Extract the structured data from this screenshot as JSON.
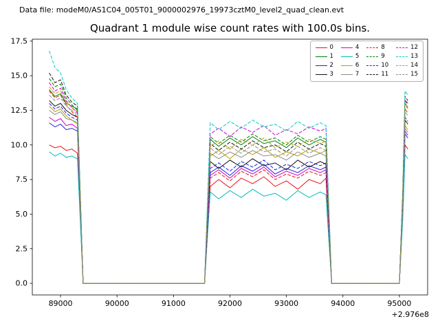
{
  "header": {
    "text": "Data file: modeM0/AS1C04_005T01_9000002976_19973cztM0_level2_quad_clean.evt"
  },
  "chart_data": {
    "type": "line",
    "title": "Quadrant 1 module wise count rates with 100.0s bins.",
    "xlabel": "",
    "ylabel": "",
    "x_offset_label": "+2.976e8",
    "xlim": [
      88500,
      95500
    ],
    "ylim": [
      -0.84,
      17.64
    ],
    "x_ticks": [
      89000,
      90000,
      91000,
      92000,
      93000,
      94000,
      95000
    ],
    "y_ticks": [
      0.0,
      2.5,
      5.0,
      7.5,
      10.0,
      12.5,
      15.0,
      17.5
    ],
    "grid": false,
    "legend_position": "upper right",
    "legend_columns": 4,
    "x": [
      88800,
      88900,
      89000,
      89100,
      89200,
      89300,
      89400,
      89500,
      90000,
      90500,
      91000,
      91450,
      91550,
      91650,
      91800,
      92000,
      92200,
      92400,
      92600,
      92800,
      93000,
      93200,
      93400,
      93600,
      93700,
      93800,
      93900,
      94300,
      94700,
      95000,
      95060,
      95100,
      95150
    ],
    "series": [
      {
        "name": "0",
        "color": "#ee1111",
        "dash": "solid",
        "values": [
          10.0,
          9.8,
          9.9,
          9.6,
          9.7,
          9.4,
          0.0,
          0.0,
          0.0,
          0.0,
          0.0,
          0.0,
          0.0,
          7.0,
          7.5,
          6.9,
          7.6,
          7.2,
          7.7,
          7.0,
          7.4,
          6.8,
          7.5,
          7.2,
          7.6,
          0.0,
          0.0,
          0.0,
          0.0,
          0.0,
          5.0,
          10.0,
          9.7
        ]
      },
      {
        "name": "1",
        "color": "#007f00",
        "dash": "solid",
        "values": [
          14.0,
          13.5,
          13.7,
          13.0,
          12.8,
          12.6,
          0.0,
          0.0,
          0.0,
          0.0,
          0.0,
          0.0,
          0.0,
          10.4,
          9.9,
          10.5,
          10.0,
          10.6,
          10.1,
          10.3,
          9.8,
          10.5,
          10.0,
          10.4,
          10.2,
          0.0,
          0.0,
          0.0,
          0.0,
          0.0,
          6.5,
          13.0,
          12.7
        ]
      },
      {
        "name": "2",
        "color": "#2020dd",
        "dash": "solid",
        "values": [
          11.6,
          11.3,
          11.5,
          11.1,
          11.2,
          11.0,
          0.0,
          0.0,
          0.0,
          0.0,
          0.0,
          0.0,
          0.0,
          8.0,
          8.4,
          7.8,
          8.5,
          8.1,
          8.6,
          7.9,
          8.3,
          8.0,
          8.5,
          8.2,
          8.4,
          0.0,
          0.0,
          0.0,
          0.0,
          0.0,
          5.4,
          10.8,
          10.5
        ]
      },
      {
        "name": "3",
        "color": "#101010",
        "dash": "solid",
        "values": [
          13.2,
          12.8,
          13.0,
          12.5,
          12.2,
          12.0,
          0.0,
          0.0,
          0.0,
          0.0,
          0.0,
          0.0,
          0.0,
          8.8,
          8.3,
          8.9,
          8.4,
          9.0,
          8.5,
          8.7,
          8.2,
          8.9,
          8.4,
          8.8,
          8.6,
          0.0,
          0.0,
          0.0,
          0.0,
          0.0,
          5.9,
          11.8,
          11.5
        ]
      },
      {
        "name": "4",
        "color": "#cc00cc",
        "dash": "solid",
        "values": [
          12.0,
          11.7,
          11.9,
          11.4,
          11.5,
          11.2,
          0.0,
          0.0,
          0.0,
          0.0,
          0.0,
          0.0,
          0.0,
          7.8,
          8.2,
          7.6,
          8.3,
          7.9,
          8.4,
          7.7,
          8.1,
          7.8,
          8.3,
          8.0,
          8.2,
          0.0,
          0.0,
          0.0,
          0.0,
          0.0,
          5.5,
          11.0,
          10.7
        ]
      },
      {
        "name": "5",
        "color": "#00b8b8",
        "dash": "solid",
        "values": [
          9.5,
          9.2,
          9.4,
          9.1,
          9.2,
          9.0,
          0.0,
          0.0,
          0.0,
          0.0,
          0.0,
          0.0,
          0.0,
          6.6,
          6.1,
          6.7,
          6.2,
          6.8,
          6.3,
          6.5,
          6.0,
          6.7,
          6.2,
          6.6,
          6.4,
          0.0,
          0.0,
          0.0,
          0.0,
          0.0,
          4.7,
          9.3,
          9.0
        ]
      },
      {
        "name": "6",
        "color": "#b8a000",
        "dash": "solid",
        "values": [
          12.8,
          12.4,
          12.6,
          12.1,
          11.8,
          11.5,
          0.0,
          0.0,
          0.0,
          0.0,
          0.0,
          0.0,
          0.0,
          9.2,
          9.6,
          9.0,
          9.7,
          9.3,
          9.8,
          9.1,
          9.5,
          9.2,
          9.7,
          9.4,
          9.6,
          0.0,
          0.0,
          0.0,
          0.0,
          0.0,
          5.7,
          11.4,
          11.1
        ]
      },
      {
        "name": "7",
        "color": "#8c8c8c",
        "dash": "solid",
        "values": [
          12.5,
          12.2,
          12.4,
          11.9,
          11.8,
          11.6,
          0.0,
          0.0,
          0.0,
          0.0,
          0.0,
          0.0,
          0.0,
          9.4,
          9.0,
          9.5,
          9.1,
          9.6,
          9.2,
          9.3,
          8.9,
          9.5,
          9.1,
          9.4,
          9.2,
          0.0,
          0.0,
          0.0,
          0.0,
          0.0,
          5.6,
          11.2,
          10.9
        ]
      },
      {
        "name": "8",
        "color": "#ee1111",
        "dash": "dashed",
        "values": [
          13.9,
          13.4,
          13.6,
          12.9,
          12.4,
          12.0,
          0.0,
          0.0,
          0.0,
          0.0,
          0.0,
          0.0,
          0.0,
          7.6,
          8.0,
          7.4,
          8.1,
          7.7,
          8.2,
          7.5,
          7.9,
          7.6,
          8.1,
          7.8,
          8.0,
          0.0,
          0.0,
          0.0,
          0.0,
          0.0,
          6.3,
          12.6,
          12.3
        ]
      },
      {
        "name": "9",
        "color": "#007f00",
        "dash": "dashed",
        "values": [
          14.8,
          14.2,
          14.4,
          13.4,
          12.9,
          12.5,
          0.0,
          0.0,
          0.0,
          0.0,
          0.0,
          0.0,
          0.0,
          10.6,
          10.1,
          10.7,
          10.2,
          10.8,
          10.3,
          10.5,
          10.0,
          10.7,
          10.2,
          10.6,
          10.4,
          0.0,
          0.0,
          0.0,
          0.0,
          0.0,
          6.7,
          13.3,
          13.0
        ]
      },
      {
        "name": "10",
        "color": "#2020dd",
        "dash": "dashed",
        "values": [
          13.0,
          12.6,
          12.8,
          12.3,
          12.0,
          11.8,
          0.0,
          0.0,
          0.0,
          0.0,
          0.0,
          0.0,
          0.0,
          8.3,
          8.7,
          8.1,
          8.8,
          8.4,
          8.9,
          8.2,
          8.6,
          8.3,
          8.8,
          8.5,
          8.7,
          0.0,
          0.0,
          0.0,
          0.0,
          0.0,
          6.0,
          12.0,
          11.7
        ]
      },
      {
        "name": "11",
        "color": "#101010",
        "dash": "dashed",
        "values": [
          15.2,
          14.5,
          14.7,
          13.6,
          13.1,
          12.8,
          0.0,
          0.0,
          0.0,
          0.0,
          0.0,
          0.0,
          0.0,
          10.1,
          9.6,
          10.2,
          9.7,
          10.3,
          9.8,
          10.0,
          9.5,
          10.2,
          9.7,
          10.1,
          9.9,
          0.0,
          0.0,
          0.0,
          0.0,
          0.0,
          6.8,
          13.5,
          13.2
        ]
      },
      {
        "name": "12",
        "color": "#cc00cc",
        "dash": "dashed",
        "values": [
          14.5,
          13.9,
          14.1,
          13.2,
          12.7,
          12.3,
          0.0,
          0.0,
          0.0,
          0.0,
          0.0,
          0.0,
          0.0,
          10.8,
          11.2,
          10.6,
          11.3,
          10.9,
          11.4,
          10.7,
          11.1,
          10.8,
          11.3,
          11.0,
          11.2,
          0.0,
          0.0,
          0.0,
          0.0,
          0.0,
          6.6,
          13.2,
          12.9
        ]
      },
      {
        "name": "13",
        "color": "#00c8c8",
        "dash": "dashed",
        "values": [
          16.8,
          15.6,
          15.2,
          14.0,
          13.4,
          13.0,
          0.0,
          0.0,
          0.0,
          0.0,
          0.0,
          0.0,
          0.0,
          11.6,
          11.1,
          11.7,
          11.2,
          11.8,
          11.3,
          11.5,
          11.0,
          11.7,
          11.2,
          11.6,
          11.4,
          0.0,
          0.0,
          0.0,
          0.0,
          0.0,
          7.0,
          13.9,
          13.6
        ]
      },
      {
        "name": "14",
        "color": "#b8a000",
        "dash": "dashed",
        "values": [
          14.2,
          13.7,
          13.9,
          13.1,
          12.7,
          12.4,
          0.0,
          0.0,
          0.0,
          0.0,
          0.0,
          0.0,
          0.0,
          9.9,
          10.3,
          9.7,
          10.4,
          10.0,
          10.5,
          9.8,
          10.2,
          9.9,
          10.4,
          10.1,
          10.3,
          0.0,
          0.0,
          0.0,
          0.0,
          0.0,
          6.5,
          12.9,
          12.6
        ]
      },
      {
        "name": "15",
        "color": "#8c8c8c",
        "dash": "dashed",
        "values": [
          13.6,
          13.2,
          13.4,
          12.8,
          12.5,
          12.2,
          0.0,
          0.0,
          0.0,
          0.0,
          0.0,
          0.0,
          0.0,
          9.8,
          9.3,
          9.9,
          9.4,
          10.0,
          9.5,
          9.7,
          9.2,
          9.9,
          9.4,
          9.8,
          9.6,
          0.0,
          0.0,
          0.0,
          0.0,
          0.0,
          6.2,
          12.4,
          12.1
        ]
      }
    ]
  }
}
